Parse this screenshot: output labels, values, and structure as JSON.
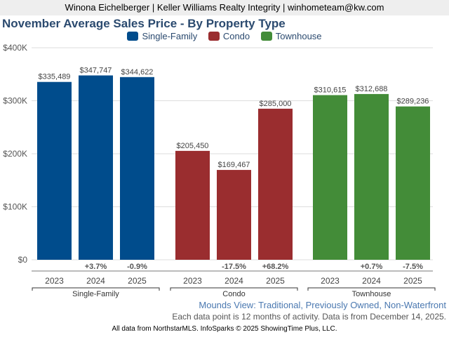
{
  "header": {
    "text": "Winona Eichelberger | Keller Williams Realty Integrity | winhometeam@kw.com"
  },
  "chart_data": {
    "type": "bar",
    "title": "November Average Sales Price - By Property Type",
    "xlabel": "",
    "ylabel": "",
    "ylim": [
      0,
      400000
    ],
    "yticks": [
      0,
      100000,
      200000,
      300000,
      400000
    ],
    "ytick_labels": [
      "$0",
      "$100K",
      "$200K",
      "$300K",
      "$400K"
    ],
    "grid": true,
    "legend_position": "top-center",
    "groups": [
      {
        "name": "Single-Family",
        "color": "#004c8c",
        "categories": [
          "2023",
          "2024",
          "2025"
        ],
        "values": [
          335489,
          347747,
          344622
        ],
        "value_labels": [
          "$335,489",
          "$347,747",
          "$344,622"
        ],
        "changes": [
          "",
          "+3.7%",
          "-0.9%"
        ]
      },
      {
        "name": "Condo",
        "color": "#9a2d2f",
        "categories": [
          "2023",
          "2024",
          "2025"
        ],
        "values": [
          205450,
          169467,
          285000
        ],
        "value_labels": [
          "$205,450",
          "$169,467",
          "$285,000"
        ],
        "changes": [
          "",
          "-17.5%",
          "+68.2%"
        ]
      },
      {
        "name": "Townhouse",
        "color": "#438c38",
        "categories": [
          "2023",
          "2024",
          "2025"
        ],
        "values": [
          310615,
          312688,
          289236
        ],
        "value_labels": [
          "$310,615",
          "$312,688",
          "$289,236"
        ],
        "changes": [
          "",
          "+0.7%",
          "-7.5%"
        ]
      }
    ]
  },
  "legend": {
    "items": [
      {
        "label": "Single-Family",
        "color": "#004c8c"
      },
      {
        "label": "Condo",
        "color": "#9a2d2f"
      },
      {
        "label": "Townhouse",
        "color": "#438c38"
      }
    ]
  },
  "footer": {
    "subtitle": "Mounds View: Traditional, Previously Owned, Non-Waterfront",
    "note": "Each data point is 12 months of activity. Data is from December 14, 2025.",
    "credit": "All data from NorthstarMLS. InfoSparks © 2025 ShowingTime Plus, LLC."
  }
}
